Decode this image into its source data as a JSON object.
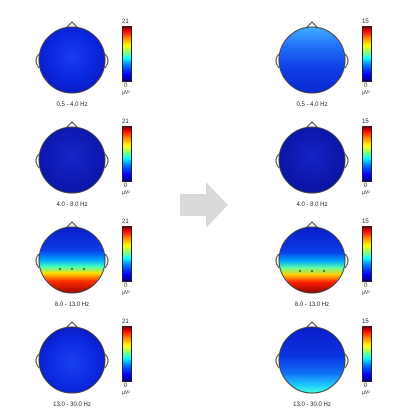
{
  "colors": {
    "background": "#ffffff",
    "arrow": "#d9d9d9",
    "outline": "#444444"
  },
  "colorbar_unit": "µV²",
  "arrow_icon": "right-arrow-icon",
  "left_column": [
    {
      "band": "0.5 - 4.0 Hz",
      "scale_max": "21",
      "scale_min": "0",
      "pattern": "low-diffuse-blue"
    },
    {
      "band": "4.0 - 8.0 Hz",
      "scale_max": "21",
      "scale_min": "0",
      "pattern": "low-uniform-dark-blue"
    },
    {
      "band": "8.0 - 13.0 Hz",
      "scale_max": "21",
      "scale_min": "0",
      "pattern": "high-posterior-red"
    },
    {
      "band": "13.0 - 30.0 Hz",
      "scale_max": "21",
      "scale_min": "0",
      "pattern": "low-diffuse-blue"
    }
  ],
  "right_column": [
    {
      "band": "0.5 - 4.0 Hz",
      "scale_max": "15",
      "scale_min": "0",
      "pattern": "frontal-light-blue"
    },
    {
      "band": "4.0 - 8.0 Hz",
      "scale_max": "15",
      "scale_min": "0",
      "pattern": "low-uniform-dark-blue"
    },
    {
      "band": "8.0 - 13.0 Hz",
      "scale_max": "15",
      "scale_min": "0",
      "pattern": "high-posterior-red"
    },
    {
      "band": "13.0 - 30.0 Hz",
      "scale_max": "15",
      "scale_min": "0",
      "pattern": "posterior-cyan"
    }
  ]
}
